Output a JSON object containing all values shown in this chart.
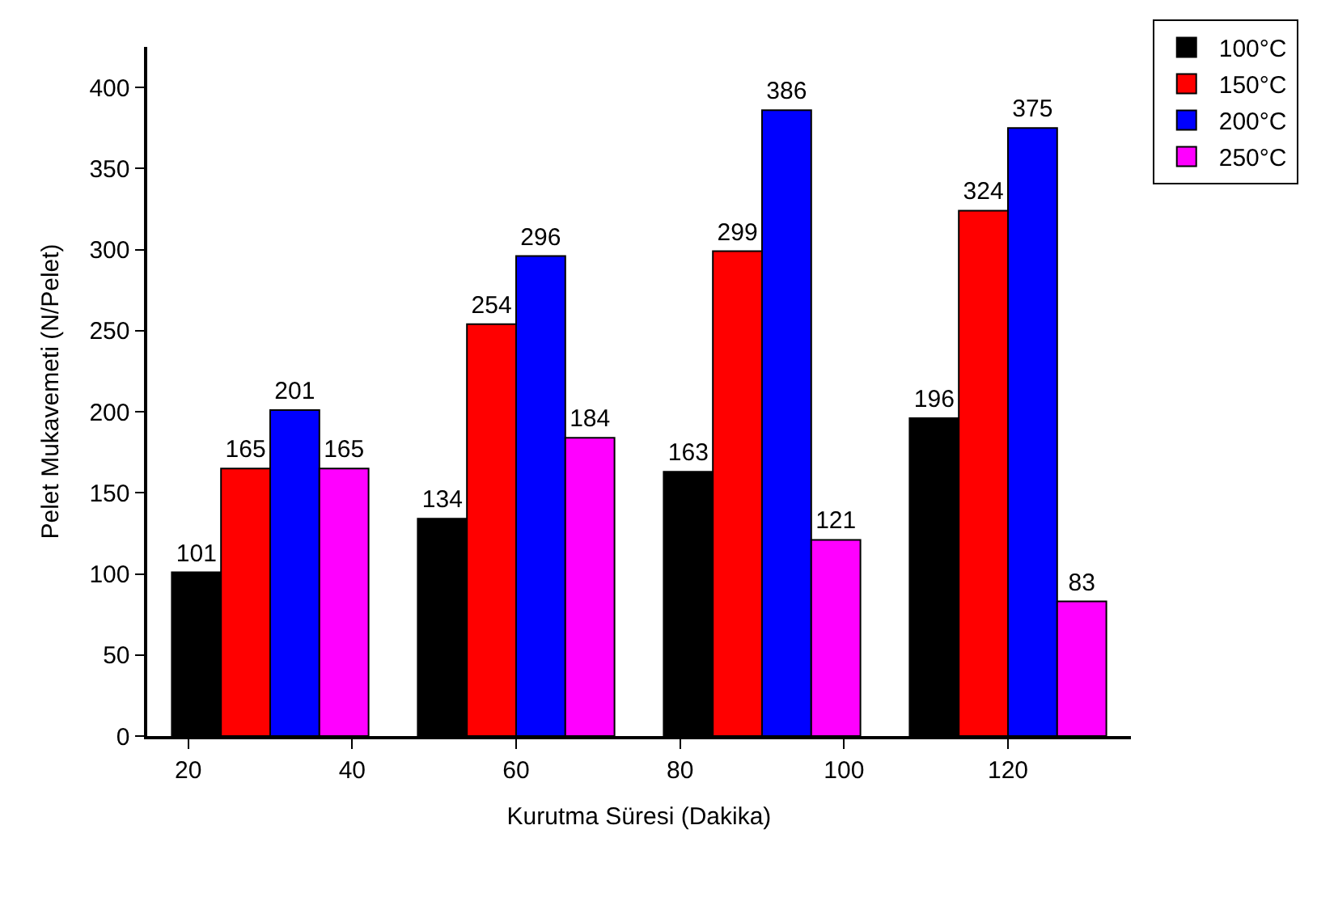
{
  "chart_data": {
    "type": "bar",
    "xlabel": "Kurutma Süresi (Dakika)",
    "ylabel": "Pelet Mukavemeti (N/Pelet)",
    "x": [
      30,
      60,
      90,
      120
    ],
    "series": [
      {
        "name": "100°C",
        "color": "#000000",
        "values": [
          101,
          134,
          163,
          196
        ]
      },
      {
        "name": "150°C",
        "color": "#ff0000",
        "values": [
          165,
          254,
          299,
          324
        ]
      },
      {
        "name": "200°C",
        "color": "#0000ff",
        "values": [
          201,
          296,
          386,
          375
        ]
      },
      {
        "name": "250°C",
        "color": "#ff00ff",
        "values": [
          165,
          184,
          121,
          83
        ]
      }
    ],
    "xlim": [
      15,
      135
    ],
    "xticks": [
      20,
      40,
      60,
      80,
      100,
      120
    ],
    "ylim": [
      0,
      425
    ],
    "yticks": [
      0,
      50,
      100,
      150,
      200,
      250,
      300,
      350,
      400
    ],
    "data_labels": true,
    "legend": "top right"
  }
}
